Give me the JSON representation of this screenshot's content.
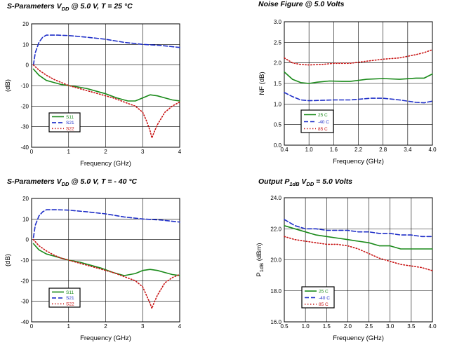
{
  "colors": {
    "green": "#1a8a1a",
    "blue": "#1f2fc8",
    "red": "#c81414"
  },
  "chart_data": [
    {
      "type": "line",
      "title": {
        "pre": "S-Parameters V",
        "sub": "DD",
        "post": " @ 5.0 V, T = 25 °C"
      },
      "xlabel": "Frequency (GHz)",
      "ylabel": "(dB)",
      "xlim": [
        0,
        4
      ],
      "ylim": [
        -40,
        20
      ],
      "xticks": [
        0,
        1,
        2,
        3,
        4
      ],
      "yticks": [
        -40,
        -30,
        -20,
        -10,
        0,
        10,
        20
      ],
      "xtick_labels": [
        "0",
        "1",
        "2",
        "3",
        "4"
      ],
      "ytick_labels": [
        "-40",
        "-30",
        "-20",
        "-10",
        "0",
        "10",
        "20"
      ],
      "grid": true,
      "legend_position": "lower-left",
      "series": [
        {
          "name": "S11",
          "color": "#1a8a1a",
          "dash": "solid",
          "x": [
            0.05,
            0.2,
            0.4,
            0.6,
            0.8,
            1.0,
            1.2,
            1.5,
            1.8,
            2.0,
            2.3,
            2.6,
            2.8,
            3.0,
            3.2,
            3.4,
            3.6,
            3.8,
            4.0
          ],
          "y": [
            -2,
            -5,
            -7.5,
            -8.5,
            -9.5,
            -10,
            -10.5,
            -11.5,
            -13,
            -14,
            -16,
            -17.5,
            -17.5,
            -16,
            -14.5,
            -15,
            -16,
            -17,
            -17.5
          ]
        },
        {
          "name": "S21",
          "color": "#1f2fc8",
          "dash": "dash",
          "x": [
            0.05,
            0.1,
            0.2,
            0.3,
            0.4,
            0.5,
            0.7,
            1.0,
            1.5,
            2.0,
            2.5,
            3.0,
            3.5,
            4.0
          ],
          "y": [
            0,
            6,
            11,
            13.5,
            14.5,
            14.5,
            14.5,
            14.3,
            13.5,
            12.5,
            11,
            10,
            9.5,
            8.5
          ]
        },
        {
          "name": "S22",
          "color": "#c81414",
          "dash": "dot",
          "x": [
            0.05,
            0.2,
            0.4,
            0.6,
            0.8,
            1.0,
            1.2,
            1.4,
            1.6,
            1.8,
            2.0,
            2.2,
            2.5,
            2.8,
            3.0,
            3.1,
            3.2,
            3.25,
            3.3,
            3.4,
            3.5,
            3.6,
            3.8,
            4.0
          ],
          "y": [
            0,
            -2.5,
            -5,
            -7,
            -8.5,
            -10,
            -11,
            -12,
            -13,
            -14,
            -15,
            -16,
            -18,
            -20,
            -23,
            -27,
            -32,
            -35.5,
            -33,
            -29,
            -26,
            -23,
            -20,
            -18
          ]
        }
      ]
    },
    {
      "type": "line",
      "title": {
        "pre": "Noise Figure @ 5.0 Volts",
        "sub": "",
        "post": ""
      },
      "xlabel": "Frequency (GHz)",
      "ylabel": "NF (dB)",
      "xlim": [
        0.4,
        4.0
      ],
      "ylim": [
        0.0,
        3.0
      ],
      "xticks": [
        0.4,
        1.0,
        1.6,
        2.2,
        2.8,
        3.4,
        4.0
      ],
      "yticks": [
        0.0,
        0.5,
        1.0,
        1.5,
        2.0,
        2.5,
        3.0
      ],
      "xtick_labels": [
        "0.4",
        "1.0",
        "1.6",
        "2.2",
        "2.8",
        "3.4",
        "4.0"
      ],
      "ytick_labels": [
        "0.0",
        "0.5",
        "1.0",
        "1.5",
        "2.0",
        "2.5",
        "3.0"
      ],
      "grid": true,
      "legend_position": "lower-left",
      "series": [
        {
          "name": "25 C",
          "color": "#1a8a1a",
          "dash": "solid",
          "x": [
            0.4,
            0.6,
            0.8,
            1.0,
            1.2,
            1.5,
            1.8,
            2.0,
            2.4,
            2.8,
            3.2,
            3.6,
            3.8,
            4.0
          ],
          "y": [
            1.78,
            1.6,
            1.52,
            1.5,
            1.53,
            1.56,
            1.55,
            1.55,
            1.6,
            1.62,
            1.6,
            1.63,
            1.63,
            1.73
          ]
        },
        {
          "name": "-40 C",
          "color": "#1f2fc8",
          "dash": "dash",
          "x": [
            0.4,
            0.6,
            0.8,
            1.0,
            1.3,
            1.6,
            2.0,
            2.5,
            2.8,
            3.2,
            3.6,
            3.8,
            4.0
          ],
          "y": [
            1.28,
            1.18,
            1.1,
            1.08,
            1.09,
            1.1,
            1.1,
            1.14,
            1.14,
            1.1,
            1.04,
            1.03,
            1.07
          ]
        },
        {
          "name": "85 C",
          "color": "#c81414",
          "dash": "dot",
          "x": [
            0.4,
            0.6,
            0.8,
            1.0,
            1.3,
            1.6,
            2.0,
            2.4,
            2.8,
            3.2,
            3.6,
            3.8,
            4.0
          ],
          "y": [
            2.12,
            2.0,
            1.96,
            1.95,
            1.96,
            1.99,
            1.99,
            2.04,
            2.09,
            2.12,
            2.2,
            2.25,
            2.32
          ]
        }
      ]
    },
    {
      "type": "line",
      "title": {
        "pre": "S-Parameters V",
        "sub": "DD",
        "post": " @ 5.0 V, T = - 40 °C"
      },
      "xlabel": "Frequency (GHz)",
      "ylabel": "(dB)",
      "xlim": [
        0,
        4
      ],
      "ylim": [
        -40,
        20
      ],
      "xticks": [
        0,
        1,
        2,
        3,
        4
      ],
      "yticks": [
        -40,
        -30,
        -20,
        -10,
        0,
        10,
        20
      ],
      "xtick_labels": [
        "0",
        "1",
        "2",
        "3",
        "4"
      ],
      "ytick_labels": [
        "-40",
        "-30",
        "-20",
        "-10",
        "0",
        "10",
        "20"
      ],
      "grid": true,
      "legend_position": "lower-left",
      "series": [
        {
          "name": "S11",
          "color": "#1a8a1a",
          "dash": "solid",
          "x": [
            0.05,
            0.2,
            0.4,
            0.6,
            0.8,
            1.0,
            1.3,
            1.6,
            1.9,
            2.2,
            2.5,
            2.8,
            3.0,
            3.2,
            3.4,
            3.6,
            3.8,
            4.0
          ],
          "y": [
            -2,
            -5,
            -7,
            -8,
            -9,
            -10,
            -11,
            -12.5,
            -14,
            -16,
            -17.5,
            -16.5,
            -15,
            -14.5,
            -15,
            -16,
            -17,
            -17.5
          ]
        },
        {
          "name": "S21",
          "color": "#1f2fc8",
          "dash": "dash",
          "x": [
            0.05,
            0.1,
            0.2,
            0.3,
            0.4,
            0.5,
            0.7,
            1.0,
            1.5,
            2.0,
            2.5,
            3.0,
            3.5,
            4.0
          ],
          "y": [
            1,
            7,
            11.5,
            13.5,
            14.5,
            14.5,
            14.5,
            14.3,
            13.5,
            12.5,
            11,
            10,
            9.5,
            8.5
          ]
        },
        {
          "name": "S22",
          "color": "#c81414",
          "dash": "dot",
          "x": [
            0.05,
            0.2,
            0.4,
            0.6,
            0.8,
            1.0,
            1.3,
            1.6,
            1.9,
            2.2,
            2.5,
            2.8,
            3.0,
            3.1,
            3.2,
            3.25,
            3.3,
            3.4,
            3.5,
            3.6,
            3.8,
            4.0
          ],
          "y": [
            0,
            -3,
            -5.5,
            -7.5,
            -9,
            -10,
            -11.5,
            -13,
            -14.5,
            -16,
            -18,
            -20,
            -23,
            -27,
            -31,
            -33.5,
            -31,
            -27,
            -24,
            -21,
            -18.5,
            -17
          ]
        }
      ]
    },
    {
      "type": "line",
      "title": {
        "pre": "Output P",
        "sub": "1dB",
        "post": " V",
        "sub2": "DD",
        "post2": " = 5.0 Volts"
      },
      "xlabel": "Frequency (GHz)",
      "ylabel": {
        "pre": "P",
        "sub": "1dB",
        "post": " (dBm)"
      },
      "xlim": [
        0.5,
        4.0
      ],
      "ylim": [
        16.0,
        24.0
      ],
      "xticks": [
        0.5,
        1.0,
        1.5,
        2.0,
        2.5,
        3.0,
        3.5,
        4.0
      ],
      "yticks": [
        16.0,
        18.0,
        20.0,
        22.0,
        24.0
      ],
      "xtick_labels": [
        "0.5",
        "1.0",
        "1.5",
        "2.0",
        "2.5",
        "3.0",
        "3.5",
        "4.0"
      ],
      "ytick_labels": [
        "16.0",
        "18.0",
        "20.0",
        "22.0",
        "24.0"
      ],
      "grid": true,
      "legend_position": "lower-left",
      "series": [
        {
          "name": "25 C",
          "color": "#1a8a1a",
          "dash": "solid",
          "x": [
            0.5,
            0.75,
            1.0,
            1.25,
            1.5,
            1.75,
            2.0,
            2.25,
            2.5,
            2.75,
            3.0,
            3.25,
            3.5,
            3.75,
            4.0
          ],
          "y": [
            22.2,
            22.0,
            21.8,
            21.6,
            21.5,
            21.4,
            21.3,
            21.2,
            21.1,
            20.9,
            20.9,
            20.7,
            20.7,
            20.7,
            20.7
          ]
        },
        {
          "name": "-40 C",
          "color": "#1f2fc8",
          "dash": "dash",
          "x": [
            0.5,
            0.75,
            1.0,
            1.25,
            1.5,
            1.75,
            2.0,
            2.25,
            2.5,
            2.75,
            3.0,
            3.25,
            3.5,
            3.75,
            4.0
          ],
          "y": [
            22.6,
            22.2,
            22.0,
            22.0,
            21.9,
            21.9,
            21.9,
            21.8,
            21.8,
            21.7,
            21.7,
            21.6,
            21.6,
            21.5,
            21.5
          ]
        },
        {
          "name": "85 C",
          "color": "#c81414",
          "dash": "dot",
          "x": [
            0.5,
            0.75,
            1.0,
            1.25,
            1.5,
            1.75,
            2.0,
            2.25,
            2.5,
            2.75,
            3.0,
            3.25,
            3.5,
            3.75,
            4.0
          ],
          "y": [
            21.5,
            21.3,
            21.2,
            21.1,
            21.0,
            21.0,
            20.9,
            20.7,
            20.4,
            20.1,
            19.9,
            19.7,
            19.6,
            19.5,
            19.3
          ]
        }
      ]
    }
  ]
}
